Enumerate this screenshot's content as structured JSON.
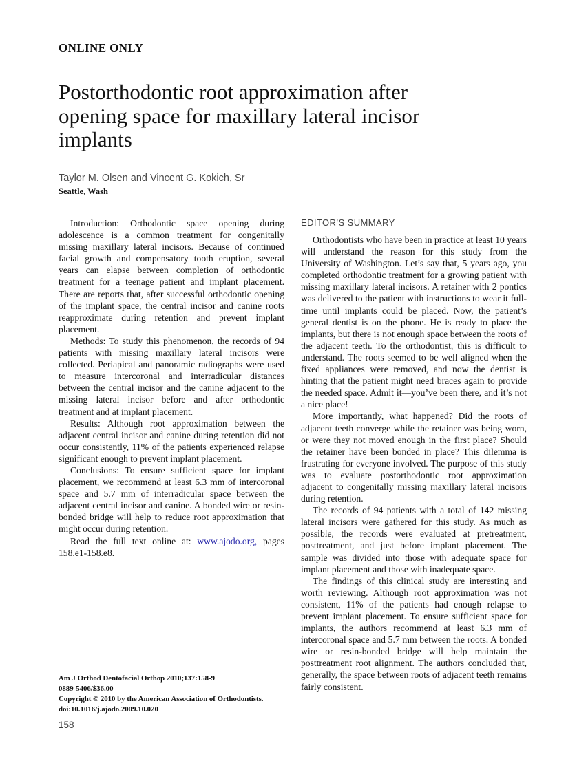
{
  "header": {
    "kicker": "ONLINE ONLY",
    "title": "Postorthodontic root approximation after opening space for maxillary lateral incisor implants",
    "authors": "Taylor M. Olsen and Vincent G. Kokich, Sr",
    "location": "Seattle, Wash"
  },
  "abstract": {
    "paragraphs": [
      "Introduction: Orthodontic space opening during adolescence is a common treatment for congenitally missing maxillary lateral incisors. Because of continued facial growth and compensatory tooth eruption, several years can elapse between completion of orthodontic treatment for a teenage patient and implant placement. There are reports that, after successful orthodontic opening of the implant space, the central incisor and canine roots reapproximate during retention and prevent implant placement.",
      "Methods: To study this phenomenon, the records of 94 patients with missing maxillary lateral incisors were collected. Periapical and panoramic radiographs were used to measure intercoronal and interradicular distances between the central incisor and the canine adjacent to the missing lateral incisor before and after orthodontic treatment and at implant placement.",
      "Results: Although root approximation between the adjacent central incisor and canine during retention did not occur consistently, 11% of the patients experienced relapse significant enough to prevent implant placement.",
      "Conclusions: To ensure sufficient space for implant placement, we recommend at least 6.3 mm of intercoronal space and 5.7 mm of interradicular space between the adjacent central incisor and canine. A bonded wire or resin-bonded bridge will help to reduce root approximation that might occur during retention."
    ],
    "read_online": {
      "prefix": "Read the full text online at: ",
      "link": "www.ajodo.org,",
      "suffix": " pages 158.e1-158.e8."
    }
  },
  "editors_summary": {
    "heading": "EDITOR’S SUMMARY",
    "paragraphs": [
      "Orthodontists who have been in practice at least 10 years will understand the reason for this study from the University of Washington. Let’s say that, 5 years ago, you completed orthodontic treatment for a growing patient with missing maxillary lateral incisors. A retainer with 2 pontics was delivered to the patient with instructions to wear it full-time until implants could be placed. Now, the patient’s general dentist is on the phone. He is ready to place the implants, but there is not enough space between the roots of the adjacent teeth. To the orthodontist, this is difficult to understand. The roots seemed to be well aligned when the fixed appliances were removed, and now the dentist is hinting that the patient might need braces again to provide the needed space. Admit it—you’ve been there, and it’s not a nice place!",
      "More importantly, what happened? Did the roots of adjacent teeth converge while the retainer was being worn, or were they not moved enough in the first place? Should the retainer have been bonded in place? This dilemma is frustrating for everyone involved. The purpose of this study was to evaluate postorthodontic root approximation adjacent to congenitally missing maxillary lateral incisors during retention.",
      "The records of 94 patients with a total of 142 missing lateral incisors were gathered for this study. As much as possible, the records were evaluated at pretreatment, posttreatment, and just before implant placement. The sample was divided into those with adequate space for implant placement and those with inadequate space.",
      "The findings of this clinical study are interesting and worth reviewing. Although root approximation was not consistent, 11% of the patients had enough relapse to prevent implant placement. To ensure sufficient space for implants, the authors recommend at least 6.3 mm of intercoronal space and 5.7 mm between the roots. A bonded wire or resin-bonded bridge will help maintain the posttreatment root alignment. The authors concluded that, generally, the space between roots of adjacent teeth remains fairly consistent."
    ]
  },
  "citation": {
    "lines": [
      "Am J Orthod Dentofacial Orthop 2010;137:158-9",
      "0889-5406/$36.00",
      "Copyright © 2010 by the American Association of Orthodontists.",
      "doi:10.1016/j.ajodo.2009.10.020"
    ]
  },
  "footer": {
    "page_number": "158"
  },
  "colors": {
    "link": "#2626aa",
    "heading": "#3e3e3e"
  }
}
